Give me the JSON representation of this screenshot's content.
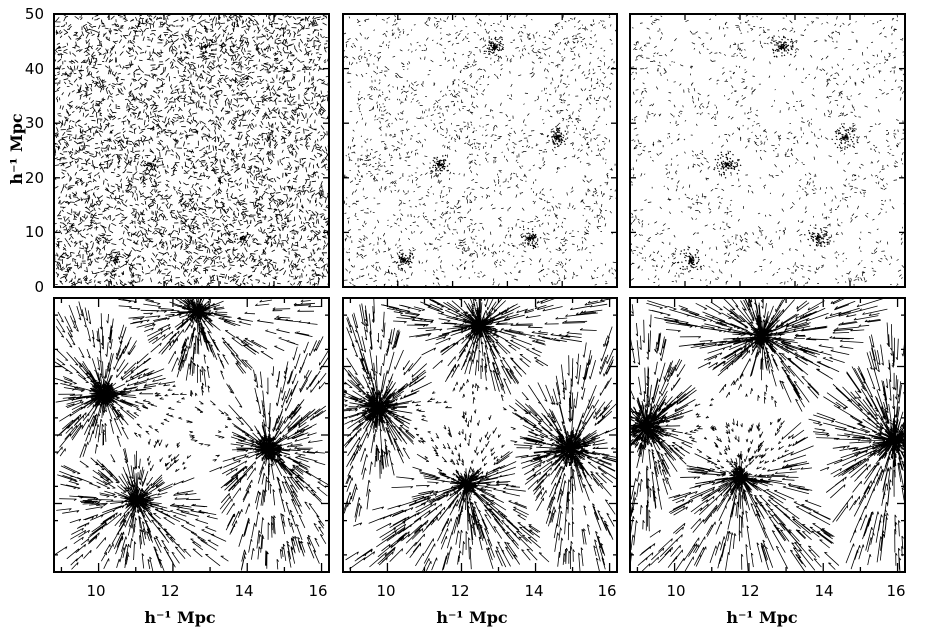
{
  "figure": {
    "panels_top": [
      {
        "id": "top-left",
        "type": "particle-scatter"
      },
      {
        "id": "top-middle",
        "type": "particle-scatter"
      },
      {
        "id": "top-right",
        "type": "particle-scatter"
      }
    ],
    "panels_bottom": [
      {
        "id": "bottom-left",
        "type": "velocity-field"
      },
      {
        "id": "bottom-middle",
        "type": "velocity-field"
      },
      {
        "id": "bottom-right",
        "type": "velocity-field"
      }
    ]
  },
  "axes": {
    "top_y_label": "h⁻¹ Mpc",
    "top_y_ticks": [
      "0",
      "10",
      "20",
      "30",
      "40",
      "50"
    ],
    "top_y_range": [
      0,
      50
    ],
    "bottom_x_label": "h⁻¹ Mpc",
    "bottom_x_ticks": [
      "10",
      "12",
      "14",
      "16"
    ],
    "bottom_x_range": [
      8.8,
      16.2
    ]
  }
}
